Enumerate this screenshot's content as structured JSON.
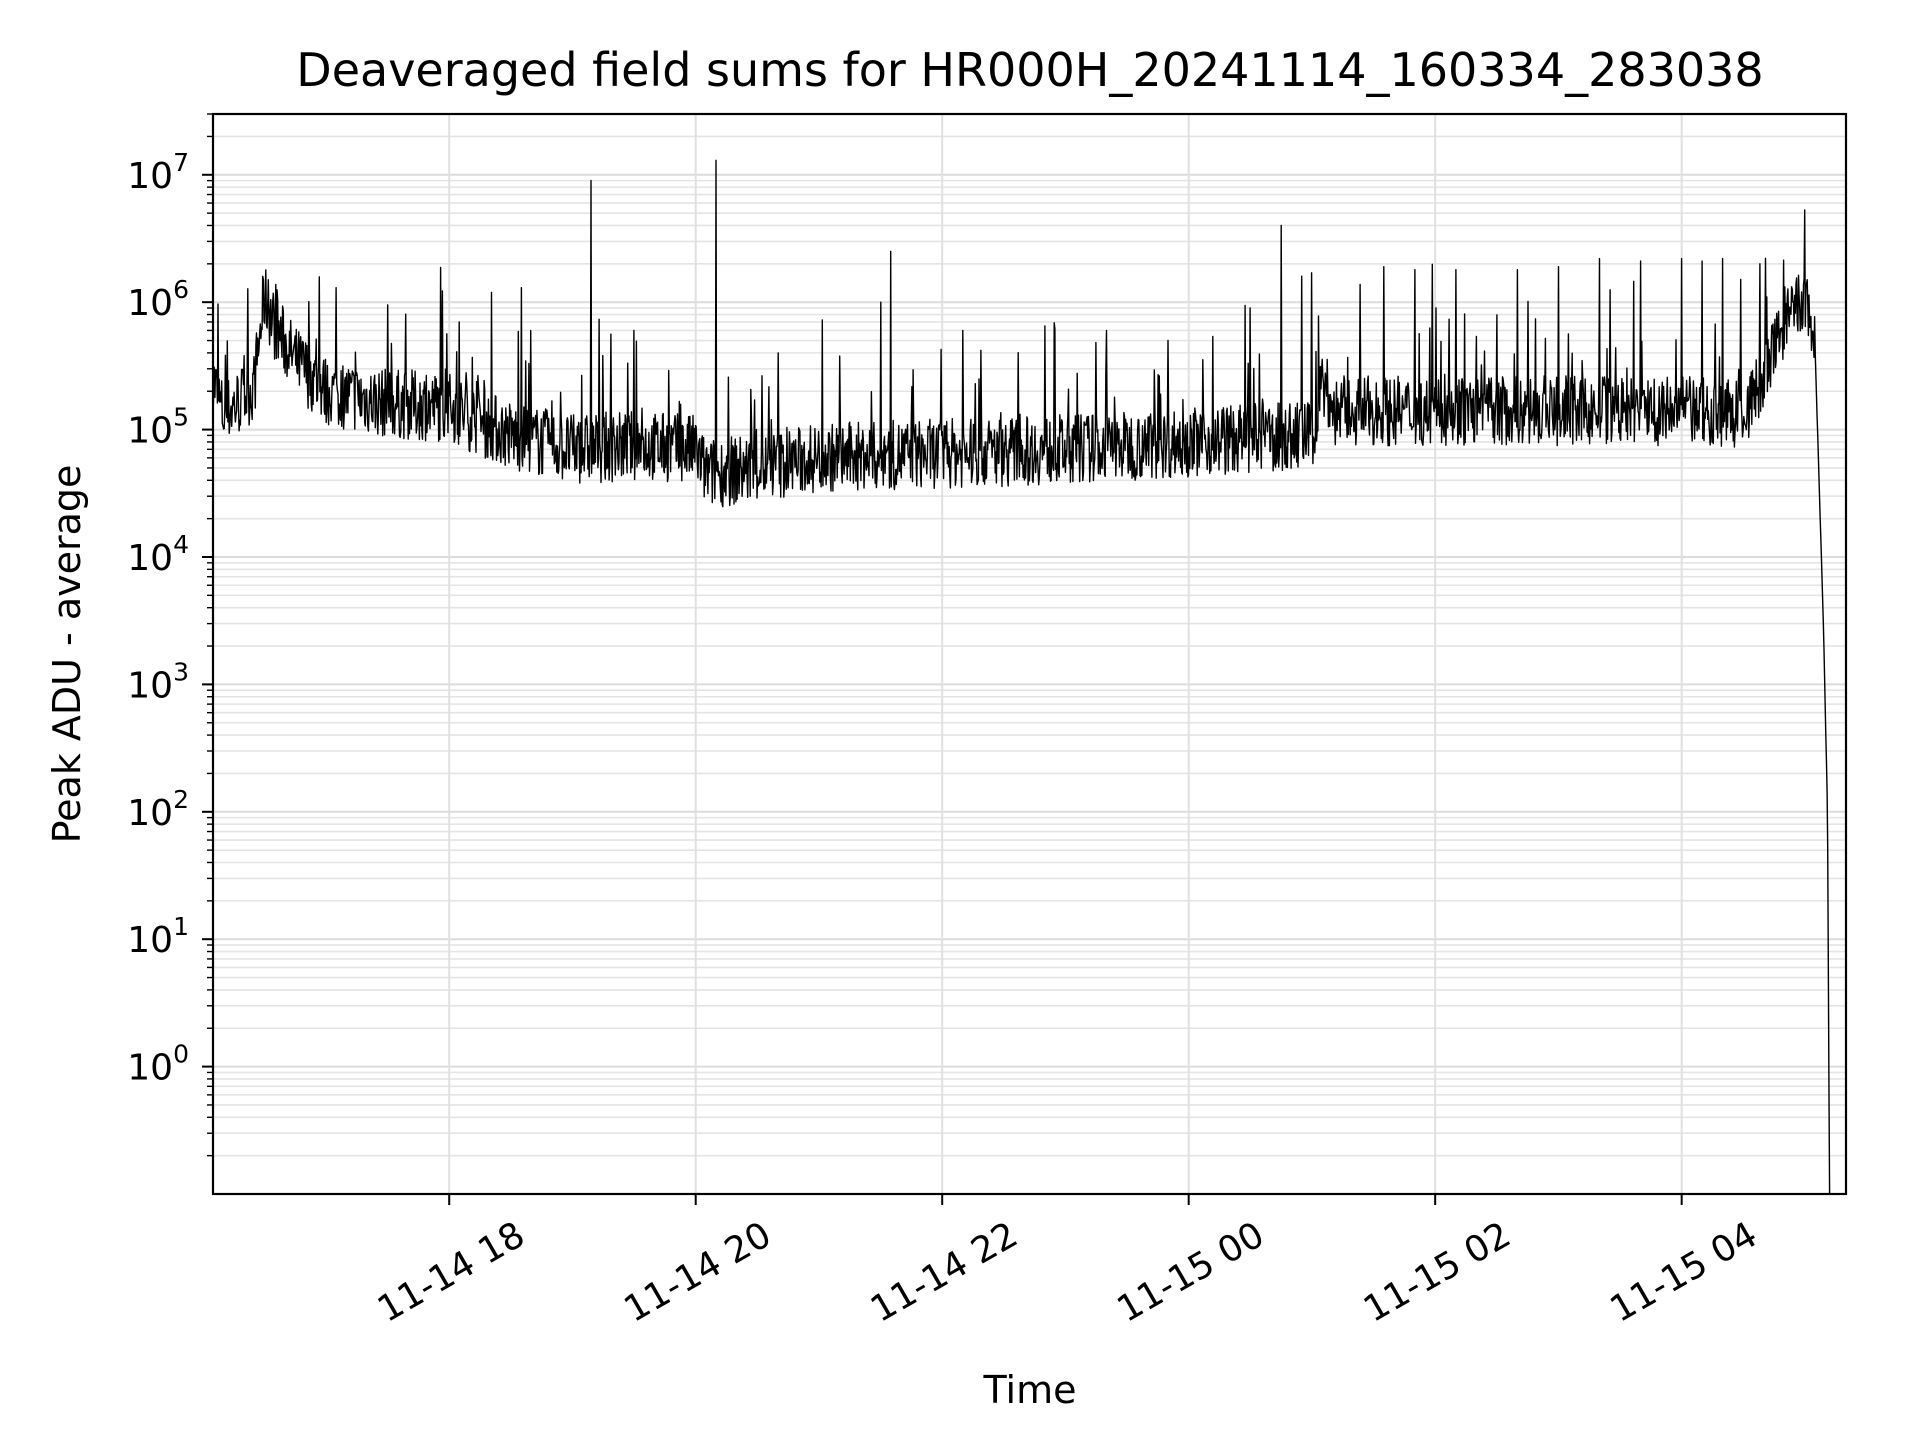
{
  "chart_data": {
    "type": "line",
    "title": "Deaveraged field sums for HR000H_20241114_160334_283038",
    "xlabel": "Time",
    "ylabel": "Peak ADU - average",
    "yscale": "log",
    "ylim": [
      0.1,
      30000000
    ],
    "xlim": [
      "2024-11-14 16:05",
      "2024-11-15 05:20"
    ],
    "grid": true,
    "line_color": "#000000",
    "x_ticks": [
      {
        "label": "11-14 18",
        "x": "2024-11-14 18:00"
      },
      {
        "label": "11-14 20",
        "x": "2024-11-14 20:00"
      },
      {
        "label": "11-14 22",
        "x": "2024-11-14 22:00"
      },
      {
        "label": "11-15 00",
        "x": "2024-11-15 00:00"
      },
      {
        "label": "11-15 02",
        "x": "2024-11-15 02:00"
      },
      {
        "label": "11-15 04",
        "x": "2024-11-15 04:00"
      }
    ],
    "y_ticks": [
      {
        "base": "10",
        "exp": "0",
        "value": 1
      },
      {
        "base": "10",
        "exp": "1",
        "value": 10
      },
      {
        "base": "10",
        "exp": "2",
        "value": 100
      },
      {
        "base": "10",
        "exp": "3",
        "value": 1000
      },
      {
        "base": "10",
        "exp": "4",
        "value": 10000
      },
      {
        "base": "10",
        "exp": "5",
        "value": 100000
      },
      {
        "base": "10",
        "exp": "6",
        "value": 1000000
      },
      {
        "base": "10",
        "exp": "7",
        "value": 10000000
      }
    ],
    "series": [
      {
        "baseline": [
          [
            "2024-11-14 16:05",
            250000
          ],
          [
            "2024-11-14 16:10",
            130000
          ],
          [
            "2024-11-14 16:20",
            180000
          ],
          [
            "2024-11-14 16:25",
            220000
          ],
          [
            "2024-11-14 16:30",
            1100000
          ],
          [
            "2024-11-14 16:35",
            650000
          ],
          [
            "2024-11-14 16:45",
            350000
          ],
          [
            "2024-11-14 17:00",
            200000
          ],
          [
            "2024-11-14 17:30",
            160000
          ],
          [
            "2024-11-14 18:00",
            150000
          ],
          [
            "2024-11-14 18:30",
            90000
          ],
          [
            "2024-11-14 19:00",
            70000
          ],
          [
            "2024-11-14 19:30",
            75000
          ],
          [
            "2024-11-14 20:00",
            70000
          ],
          [
            "2024-11-14 20:05",
            45000
          ],
          [
            "2024-11-14 20:30",
            50000
          ],
          [
            "2024-11-14 21:00",
            60000
          ],
          [
            "2024-11-14 22:00",
            65000
          ],
          [
            "2024-11-14 23:00",
            70000
          ],
          [
            "2024-11-15 00:00",
            80000
          ],
          [
            "2024-11-15 00:30",
            85000
          ],
          [
            "2024-11-15 01:00",
            90000
          ],
          [
            "2024-11-15 01:05",
            240000
          ],
          [
            "2024-11-15 01:10",
            140000
          ],
          [
            "2024-11-15 02:00",
            140000
          ],
          [
            "2024-11-15 03:00",
            140000
          ],
          [
            "2024-11-15 04:00",
            140000
          ],
          [
            "2024-11-15 04:30",
            130000
          ],
          [
            "2024-11-15 04:40",
            250000
          ],
          [
            "2024-11-15 04:50",
            700000
          ],
          [
            "2024-11-15 04:58",
            950000
          ],
          [
            "2024-11-15 05:02",
            900000
          ],
          [
            "2024-11-15 05:05",
            400000
          ],
          [
            "2024-11-15 05:09",
            3000
          ],
          [
            "2024-11-15 05:11",
            100
          ],
          [
            "2024-11-15 05:12",
            0.1
          ]
        ],
        "spikes": [
          [
            "2024-11-14 16:32",
            1500000
          ],
          [
            "2024-11-14 17:05",
            1300000
          ],
          [
            "2024-11-14 17:30",
            950000
          ],
          [
            "2024-11-14 18:05",
            700000
          ],
          [
            "2024-11-14 18:35",
            1300000
          ],
          [
            "2024-11-14 19:09",
            9000000
          ],
          [
            "2024-11-14 19:30",
            600000
          ],
          [
            "2024-11-14 20:10",
            13000000
          ],
          [
            "2024-11-14 20:40",
            400000
          ],
          [
            "2024-11-14 21:30",
            1000000
          ],
          [
            "2024-11-14 21:35",
            2500000
          ],
          [
            "2024-11-14 22:10",
            600000
          ],
          [
            "2024-11-14 22:50",
            650000
          ],
          [
            "2024-11-14 23:20",
            600000
          ],
          [
            "2024-11-14 23:50",
            500000
          ],
          [
            "2024-11-15 00:30",
            900000
          ],
          [
            "2024-11-15 00:45",
            4000000
          ],
          [
            "2024-11-15 00:55",
            1600000
          ],
          [
            "2024-11-15 01:00",
            1700000
          ],
          [
            "2024-11-15 01:35",
            1900000
          ],
          [
            "2024-11-15 01:50",
            1800000
          ],
          [
            "2024-11-15 02:10",
            1800000
          ],
          [
            "2024-11-15 02:40",
            1800000
          ],
          [
            "2024-11-15 03:00",
            1900000
          ],
          [
            "2024-11-15 03:20",
            2200000
          ],
          [
            "2024-11-15 03:40",
            2100000
          ],
          [
            "2024-11-15 04:00",
            2200000
          ],
          [
            "2024-11-15 04:10",
            2100000
          ],
          [
            "2024-11-15 04:20",
            2200000
          ],
          [
            "2024-11-15 04:38",
            2000000
          ],
          [
            "2024-11-15 05:00",
            5300000
          ]
        ]
      }
    ]
  }
}
